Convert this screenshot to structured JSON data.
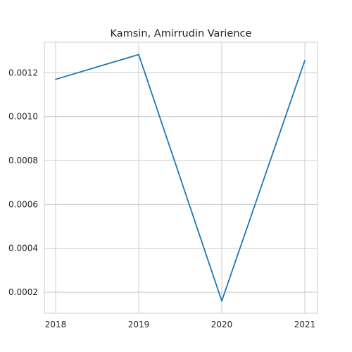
{
  "chart_data": {
    "type": "line",
    "title": "Kamsin, Amirrudin Varience",
    "xlabel": "",
    "ylabel": "",
    "categories": [
      "2018",
      "2019",
      "2020",
      "2021"
    ],
    "series": [
      {
        "values": [
          0.00117,
          0.001283,
          0.00016,
          0.001256
        ]
      }
    ],
    "ylim": [
      0.000104,
      0.001339
    ],
    "yticks": [
      0.0002,
      0.0004,
      0.0006,
      0.0008,
      0.001,
      0.0012
    ],
    "ytick_labels": [
      "0.0002",
      "0.0004",
      "0.0006",
      "0.0008",
      "0.0010",
      "0.0012"
    ],
    "grid": true,
    "legend": "none",
    "colors": {
      "series": "#1f77b4",
      "grid": "#cccccc",
      "text": "#262626",
      "background": "#ffffff"
    }
  }
}
